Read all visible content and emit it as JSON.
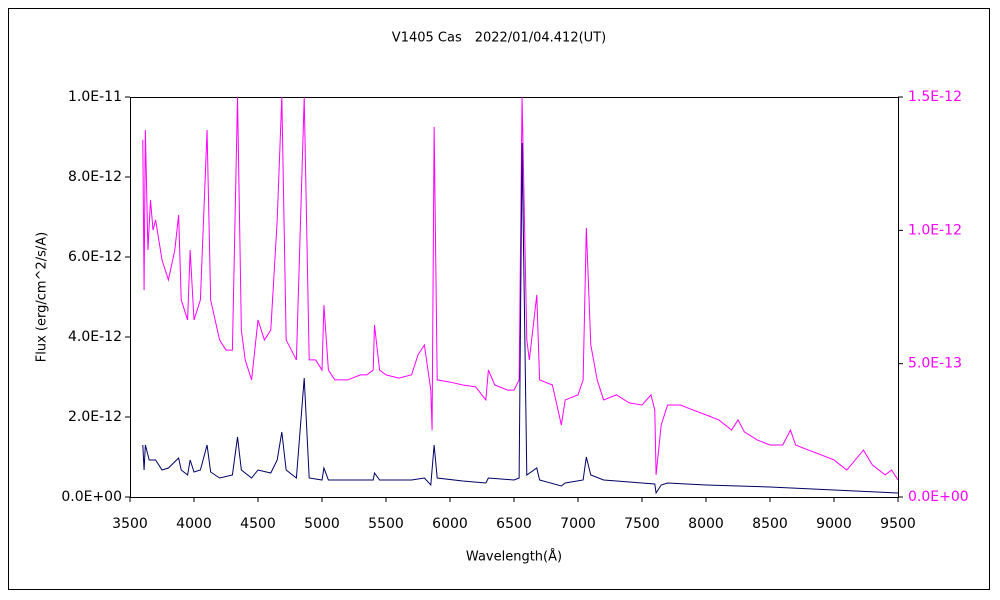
{
  "chart_data": {
    "type": "line",
    "title": "V1405 Cas　2022/01/04.412(UT)",
    "x_label": "Wavelength(Å)",
    "y_label": "Flux (erg/cm^2/s/A)",
    "xlim": [
      3500,
      9500
    ],
    "xticks": [
      3500,
      4000,
      4500,
      5000,
      5500,
      6000,
      6500,
      7000,
      7500,
      8000,
      8500,
      9000,
      9500
    ],
    "ylim": [
      0,
      1e-11
    ],
    "yticks": [
      {
        "value": 0,
        "label": "0.0E+00"
      },
      {
        "value": 2e-12,
        "label": "2.0E-12"
      },
      {
        "value": 4e-12,
        "label": "4.0E-12"
      },
      {
        "value": 6e-12,
        "label": "6.0E-12"
      },
      {
        "value": 8e-12,
        "label": "8.0E-12"
      },
      {
        "value": 1e-11,
        "label": "1.0E-11"
      }
    ],
    "y2lim": [
      0,
      1.5e-12
    ],
    "y2ticks": [
      {
        "value": 0,
        "label": "0.0E+00"
      },
      {
        "value": 5e-13,
        "label": "5.0E-13"
      },
      {
        "value": 1e-12,
        "label": "1.0E-12"
      },
      {
        "value": 1.5e-12,
        "label": "1.5E-12"
      }
    ],
    "series": [
      {
        "color": "#ff00ff",
        "axis": "y2",
        "x": [
          3600,
          3610,
          3620,
          3640,
          3660,
          3680,
          3700,
          3750,
          3800,
          3850,
          3880,
          3900,
          3950,
          3970,
          4000,
          4050,
          4102,
          4130,
          4200,
          4250,
          4300,
          4340,
          4370,
          4400,
          4450,
          4500,
          4550,
          4600,
          4650,
          4686,
          4720,
          4800,
          4861,
          4900,
          4950,
          5000,
          5015,
          5050,
          5100,
          5200,
          5300,
          5350,
          5400,
          5410,
          5450,
          5500,
          5600,
          5700,
          5750,
          5800,
          5850,
          5860,
          5876,
          5900,
          6000,
          6100,
          6200,
          6280,
          6300,
          6350,
          6450,
          6500,
          6540,
          6563,
          6600,
          6620,
          6678,
          6700,
          6800,
          6870,
          6900,
          7000,
          7040,
          7065,
          7100,
          7150,
          7200,
          7300,
          7400,
          7500,
          7570,
          7600,
          7610,
          7650,
          7700,
          7800,
          7900,
          8000,
          8100,
          8200,
          8250,
          8300,
          8400,
          8500,
          8600,
          8660,
          8700,
          8800,
          8900,
          9000,
          9100,
          9230,
          9300,
          9400,
          9450,
          9500
        ],
        "values": [
          1.339e-12,
          7.76e-13,
          1.376e-12,
          9.26e-13,
          1.114e-12,
          1.001e-12,
          1.039e-12,
          8.89e-13,
          8.14e-13,
          9.26e-13,
          1.058e-12,
          7.39e-13,
          6.64e-13,
          9.26e-13,
          6.64e-13,
          7.39e-13,
          1.376e-12,
          7.39e-13,
          5.89e-13,
          5.51e-13,
          5.51e-13,
          1.5e-12,
          6.26e-13,
          5.14e-13,
          4.39e-13,
          6.64e-13,
          5.89e-13,
          6.26e-13,
          1.039e-12,
          1.5e-12,
          5.89e-13,
          5.14e-13,
          1.5e-12,
          5.14e-13,
          5.14e-13,
          4.76e-13,
          7.2e-13,
          4.76e-13,
          4.39e-13,
          4.39e-13,
          4.58e-13,
          4.58e-13,
          4.76e-13,
          6.45e-13,
          4.76e-13,
          4.58e-13,
          4.46e-13,
          4.58e-13,
          5.33e-13,
          5.7e-13,
          4.01e-13,
          2.51e-13,
          1.388e-12,
          4.39e-13,
          4.31e-13,
          4.2e-13,
          4.13e-13,
          3.64e-13,
          4.76e-13,
          4.2e-13,
          4.01e-13,
          4.01e-13,
          4.39e-13,
          1.5e-12,
          5.89e-13,
          5.14e-13,
          7.58e-13,
          4.39e-13,
          4.2e-13,
          2.7e-13,
          3.64e-13,
          3.83e-13,
          4.39e-13,
          1.009e-12,
          5.7e-13,
          4.39e-13,
          3.64e-13,
          3.83e-13,
          3.53e-13,
          3.45e-13,
          3.83e-13,
          3.26e-13,
          8.3e-14,
          2.7e-13,
          3.45e-13,
          3.45e-13,
          3.26e-13,
          3.08e-13,
          2.89e-13,
          2.51e-13,
          2.89e-13,
          2.44e-13,
          2.14e-13,
          1.95e-13,
          1.95e-13,
          2.51e-13,
          1.95e-13,
          1.76e-13,
          1.58e-13,
          1.39e-13,
          1.01e-13,
          1.76e-13,
          1.2e-13,
          8.3e-14,
          1.01e-13,
          6.4e-14
        ]
      },
      {
        "color": "#000066",
        "axis": "y",
        "x": [
          3600,
          3610,
          3620,
          3650,
          3700,
          3750,
          3800,
          3880,
          3900,
          3950,
          3970,
          4000,
          4050,
          4102,
          4130,
          4200,
          4300,
          4340,
          4370,
          4450,
          4500,
          4600,
          4650,
          4686,
          4720,
          4800,
          4861,
          4900,
          5000,
          5015,
          5050,
          5200,
          5400,
          5410,
          5450,
          5700,
          5800,
          5850,
          5876,
          5900,
          6100,
          6280,
          6300,
          6500,
          6540,
          6563,
          6600,
          6678,
          6700,
          6870,
          6900,
          7040,
          7065,
          7100,
          7200,
          7500,
          7600,
          7610,
          7650,
          7700,
          8000,
          8500,
          9000,
          9500
        ],
        "values": [
          1.3e-12,
          6.75e-13,
          1.3e-12,
          9.25e-13,
          9.25e-13,
          6.75e-13,
          7.25e-13,
          9.75e-13,
          6.75e-13,
          5.5e-13,
          9.25e-13,
          6.25e-13,
          6.75e-13,
          1.3e-12,
          6.25e-13,
          4.75e-13,
          5.5e-13,
          1.5e-12,
          6.75e-13,
          4.75e-13,
          6.75e-13,
          6e-13,
          9.25e-13,
          1.625e-12,
          6.75e-13,
          4.75e-13,
          2.975e-12,
          4.75e-13,
          4.25e-13,
          7.25e-13,
          4.25e-13,
          4.25e-13,
          4.25e-13,
          6e-13,
          4.25e-13,
          4.25e-13,
          4.75e-13,
          3e-13,
          1.3e-12,
          4.75e-13,
          4e-13,
          3.5e-13,
          4.75e-13,
          4.25e-13,
          4.75e-13,
          8.85e-12,
          5.5e-13,
          7.25e-13,
          4.25e-13,
          2.75e-13,
          3.5e-13,
          4.25e-13,
          1e-12,
          5.5e-13,
          4.25e-13,
          3.5e-13,
          3.25e-13,
          1e-13,
          3e-13,
          3.5e-13,
          3e-13,
          2.5e-13,
          1.75e-13,
          1e-13
        ]
      }
    ]
  }
}
